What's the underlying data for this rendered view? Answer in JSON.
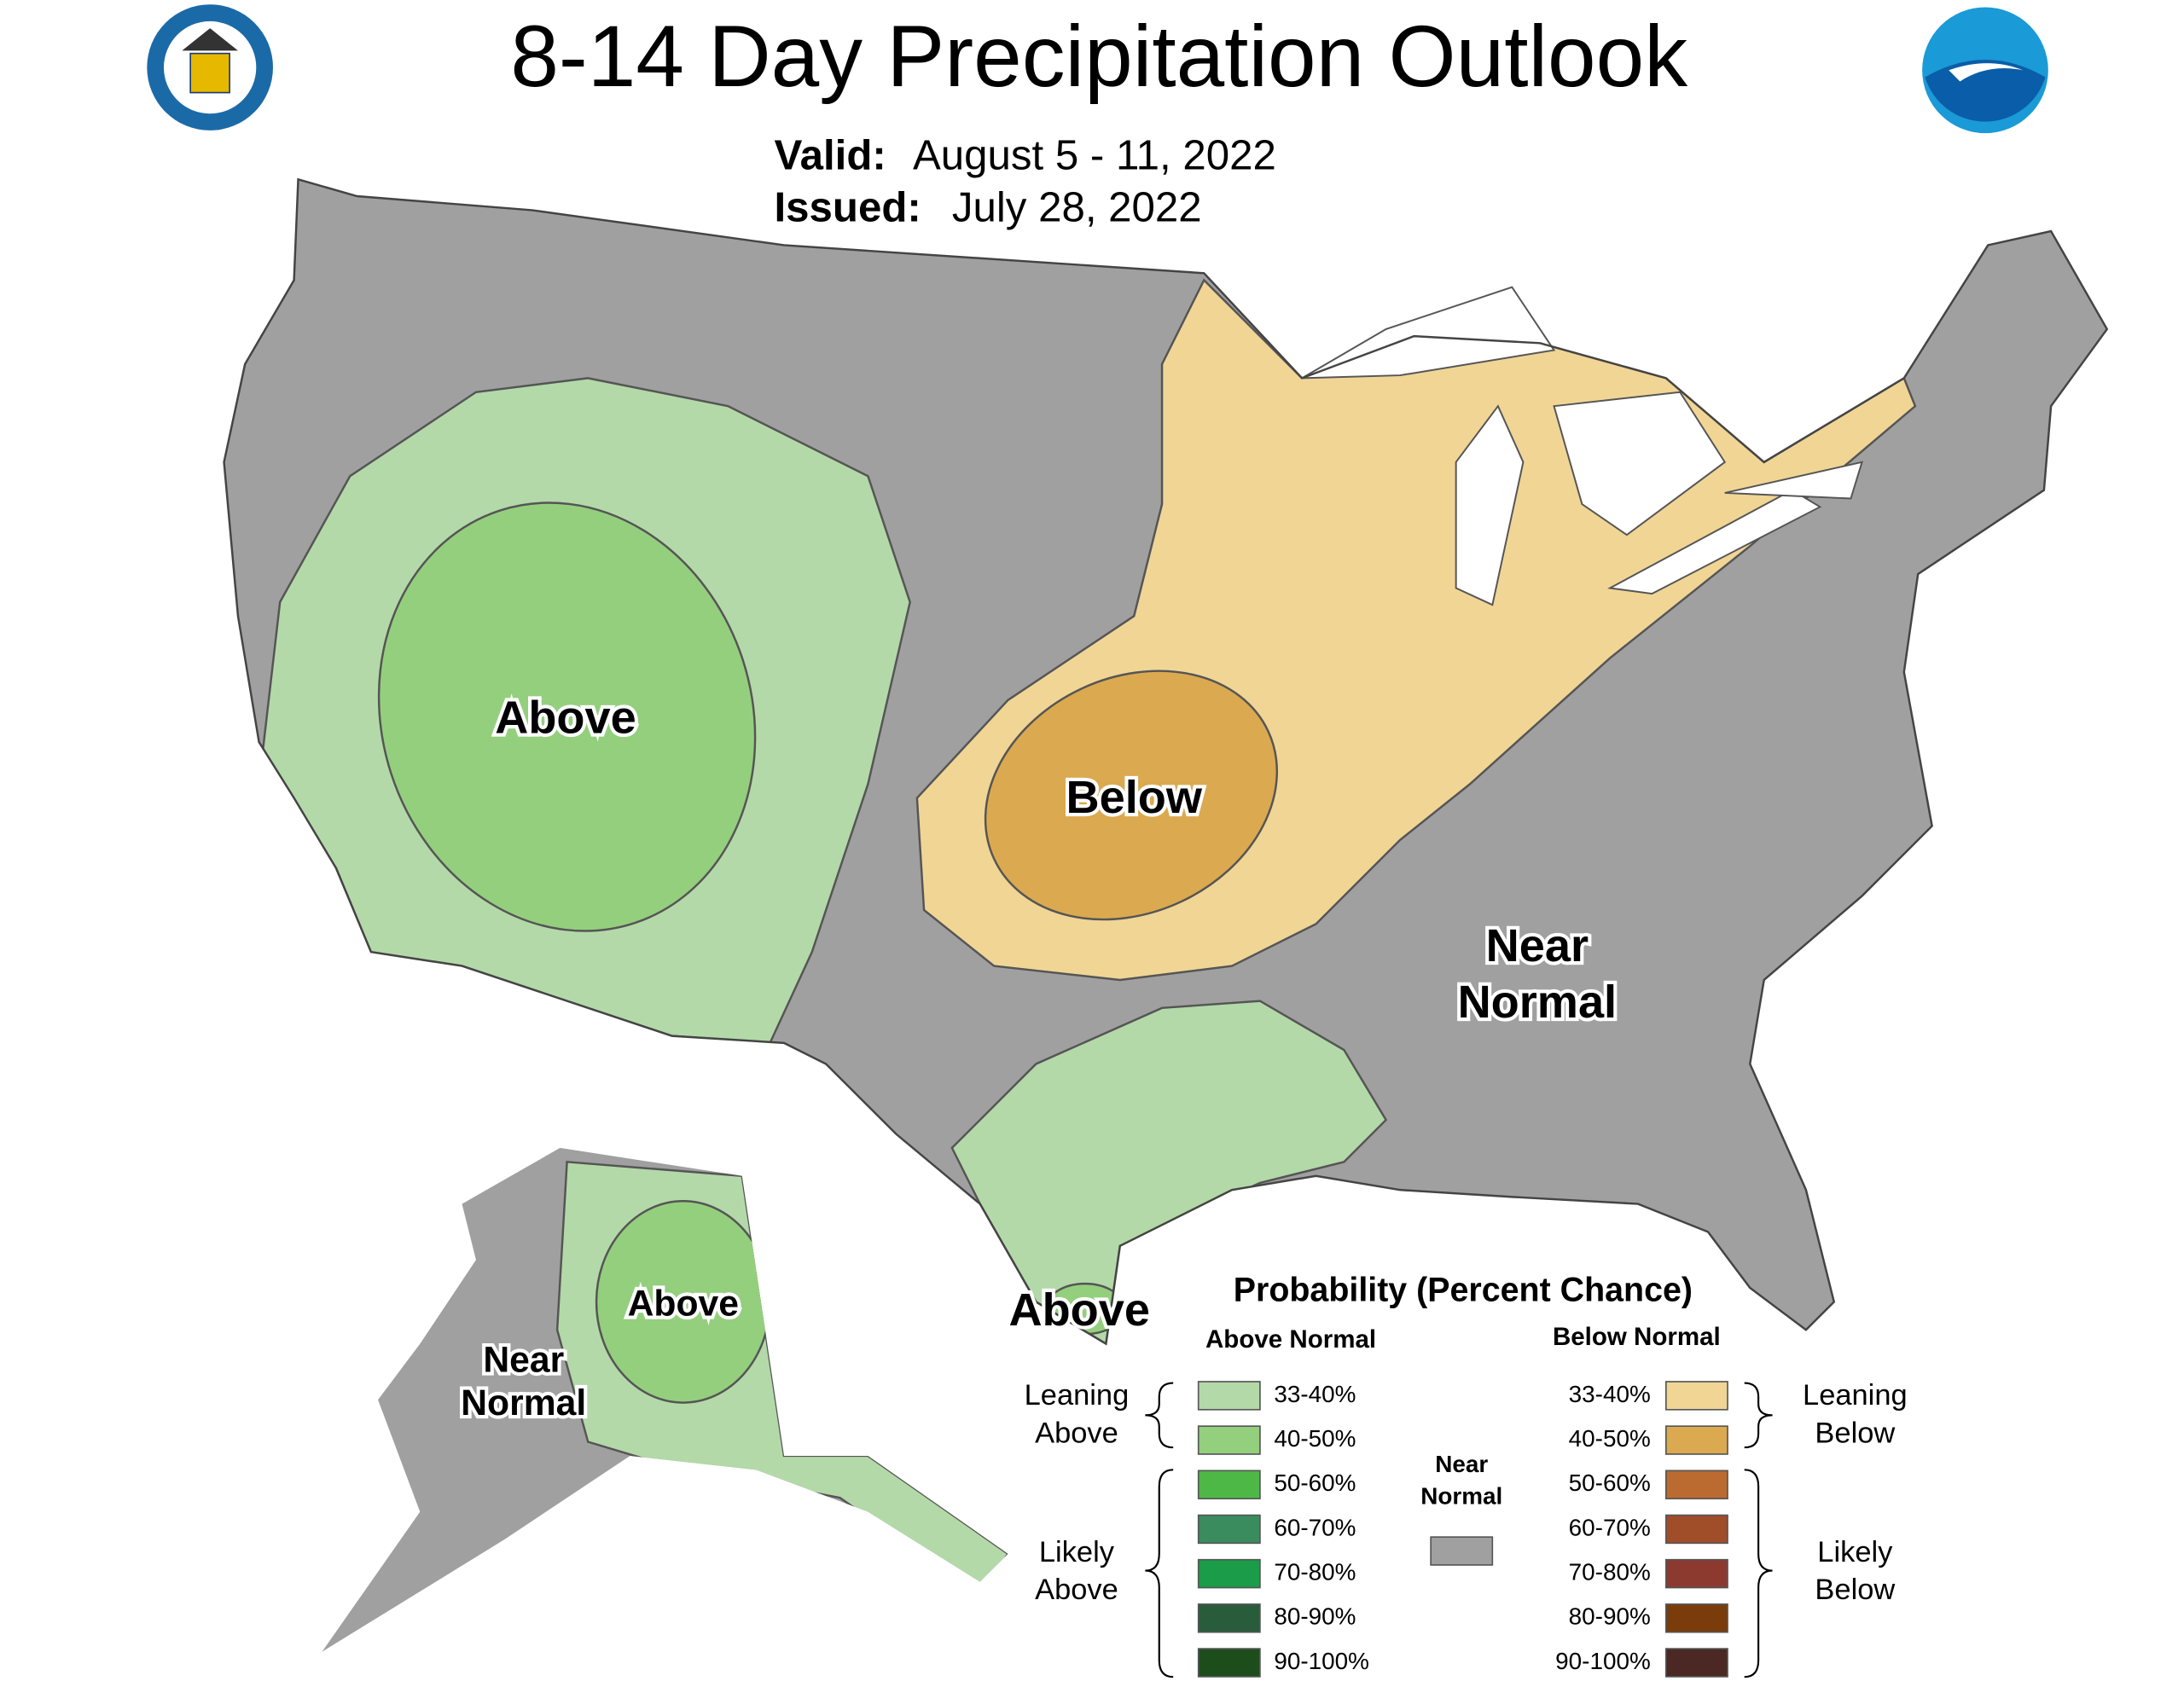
{
  "header": {
    "title": "8-14 Day Precipitation Outlook",
    "valid_label": "Valid:",
    "valid": "August 5 - 11, 2022",
    "issued_label": "Issued:",
    "issued": "July 28, 2022"
  },
  "map_labels": {
    "west": "Above",
    "central": "Below",
    "east": [
      "Near",
      "Normal"
    ],
    "texas": "Above",
    "alaska_above": "Above",
    "alaska_near": [
      "Near",
      "Normal"
    ]
  },
  "legend": {
    "title": "Probability (Percent Chance)",
    "above_header": "Above Normal",
    "below_header": "Below Normal",
    "near_normal": {
      "lines": [
        "Near",
        "Normal"
      ],
      "color": "#a0a0a0"
    },
    "leaning_above": [
      "Leaning",
      "Above"
    ],
    "likely_above": [
      "Likely",
      "Above"
    ],
    "leaning_below": [
      "Leaning",
      "Below"
    ],
    "likely_below": [
      "Likely",
      "Below"
    ],
    "above": [
      {
        "label": "33-40%",
        "color": "#b3d9a8"
      },
      {
        "label": "40-50%",
        "color": "#94cf7e"
      },
      {
        "label": "50-60%",
        "color": "#4eb847"
      },
      {
        "label": "60-70%",
        "color": "#3a8c5f"
      },
      {
        "label": "70-80%",
        "color": "#1a9c48"
      },
      {
        "label": "80-90%",
        "color": "#285c3a"
      },
      {
        "label": "90-100%",
        "color": "#1e4d1c"
      }
    ],
    "below": [
      {
        "label": "33-40%",
        "color": "#f0d595"
      },
      {
        "label": "40-50%",
        "color": "#dba94f"
      },
      {
        "label": "50-60%",
        "color": "#bb6a30"
      },
      {
        "label": "60-70%",
        "color": "#a04d2a"
      },
      {
        "label": "70-80%",
        "color": "#8c3a30"
      },
      {
        "label": "80-90%",
        "color": "#7a3c0a"
      },
      {
        "label": "90-100%",
        "color": "#4b2823"
      }
    ]
  }
}
